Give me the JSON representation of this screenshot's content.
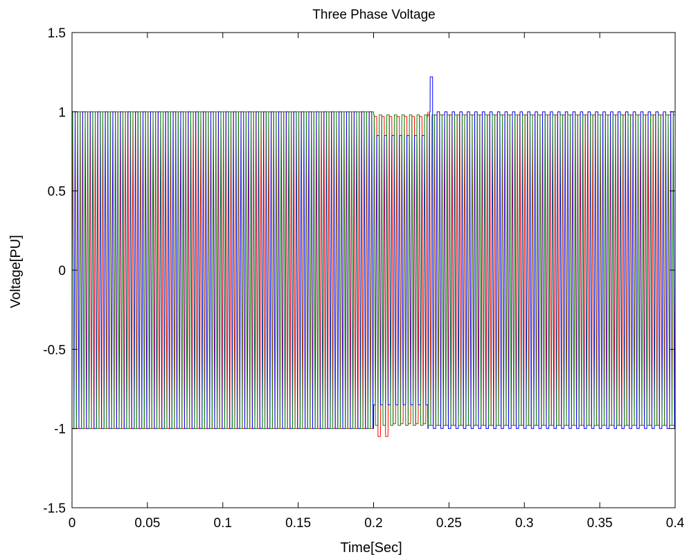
{
  "chart_data": {
    "type": "line",
    "title": "Three Phase Voltage",
    "xlabel": "Time[Sec]",
    "ylabel": "Voltage[PU]",
    "xlim": [
      0,
      0.4
    ],
    "ylim": [
      -1.5,
      1.5
    ],
    "x_ticks": [
      0,
      0.05,
      0.1,
      0.15,
      0.2,
      0.25,
      0.3,
      0.35,
      0.4
    ],
    "x_tick_labels": [
      "0",
      "0.05",
      "0.1",
      "0.15",
      "0.2",
      "0.25",
      "0.3",
      "0.35",
      "0.4"
    ],
    "y_ticks": [
      -1.5,
      -1,
      -0.5,
      0,
      0.5,
      1,
      1.5
    ],
    "y_tick_labels": [
      "-1.5",
      "-1",
      "-0.5",
      "0",
      "0.5",
      "1",
      "1.5"
    ],
    "grid": false,
    "frequency_hz": 200,
    "disturbance": {
      "start": 0.2,
      "end": 0.24,
      "notes": [
        "Phase dips to about 0.85 between 0.20 and 0.235 s",
        "Spike to about 1.22 near 0.238 s",
        "Minimum about -1.05 near 0.208 s"
      ]
    },
    "series": [
      {
        "color": "#ff0000",
        "amplitude": 1.0,
        "phase_deg": 0
      },
      {
        "color": "#0000ff",
        "amplitude": 1.0,
        "phase_deg": -120
      },
      {
        "color": "#008000",
        "amplitude": 1.0,
        "phase_deg": 120
      }
    ]
  }
}
